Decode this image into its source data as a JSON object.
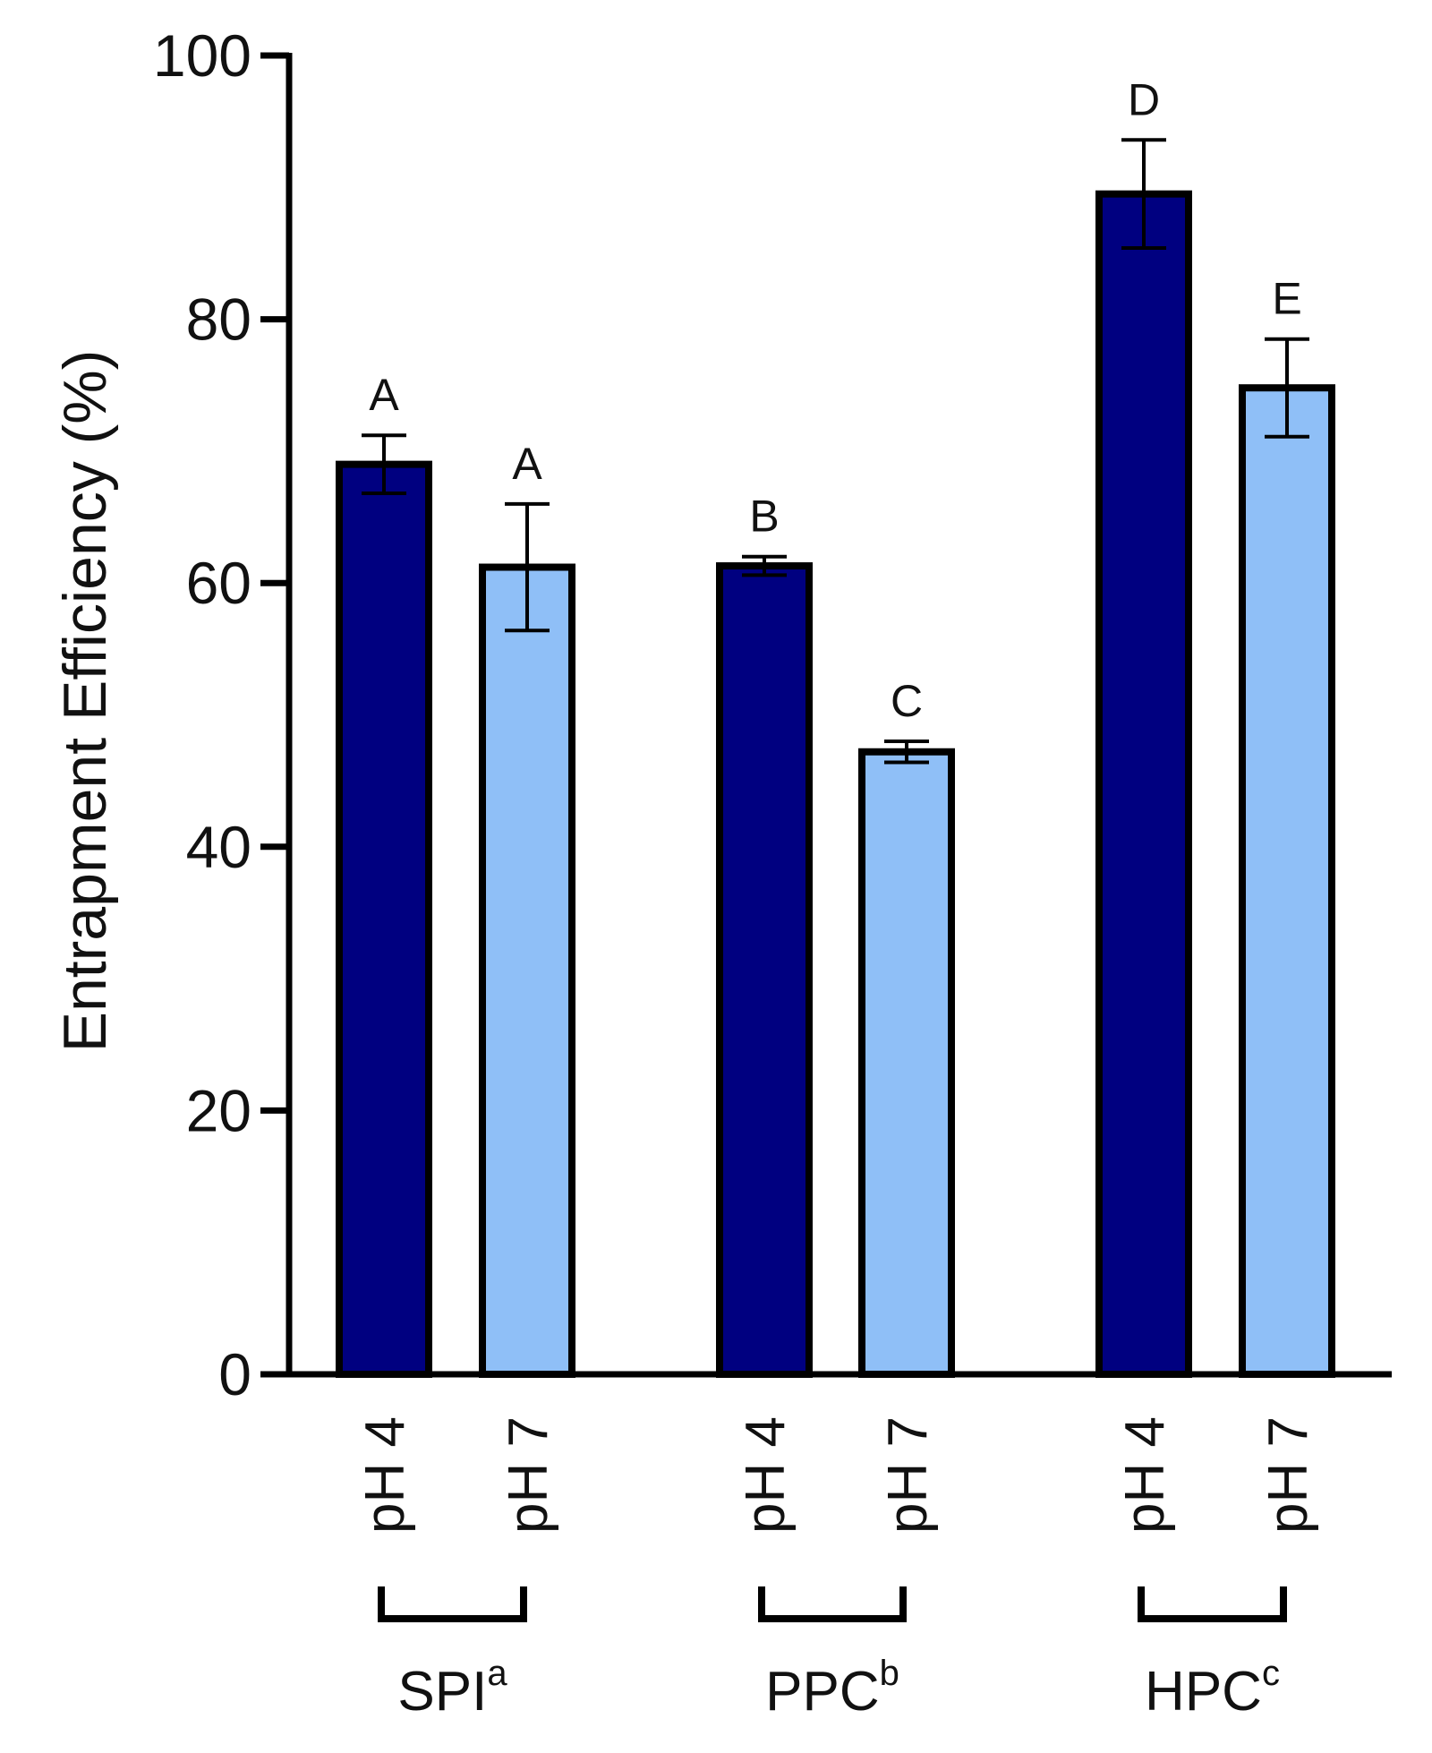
{
  "chart_data": {
    "type": "bar",
    "ylabel": "Entrapment Efficiency (%)",
    "xlabel": "",
    "ylim": [
      0,
      100
    ],
    "yticks": [
      0,
      20,
      40,
      60,
      80,
      100
    ],
    "grid": false,
    "legend": "none",
    "groups": [
      {
        "name": "SPI",
        "superscript": "a"
      },
      {
        "name": "PPC",
        "superscript": "b"
      },
      {
        "name": "HPC",
        "superscript": "c"
      }
    ],
    "bars": [
      {
        "group": 0,
        "label": "pH 4",
        "value": 69,
        "error": 2.2,
        "letter": "A",
        "color": "#000080"
      },
      {
        "group": 0,
        "label": "pH 7",
        "value": 61.2,
        "error": 4.8,
        "letter": "A",
        "color": "#8fbff7"
      },
      {
        "group": 1,
        "label": "pH 4",
        "value": 61.3,
        "error": 0.7,
        "letter": "B",
        "color": "#000080"
      },
      {
        "group": 1,
        "label": "pH 7",
        "value": 47.2,
        "error": 0.8,
        "letter": "C",
        "color": "#8fbff7"
      },
      {
        "group": 2,
        "label": "pH 4",
        "value": 89.5,
        "error": 4.1,
        "letter": "D",
        "color": "#000080"
      },
      {
        "group": 2,
        "label": "pH 7",
        "value": 74.8,
        "error": 3.7,
        "letter": "E",
        "color": "#8fbff7"
      }
    ]
  }
}
